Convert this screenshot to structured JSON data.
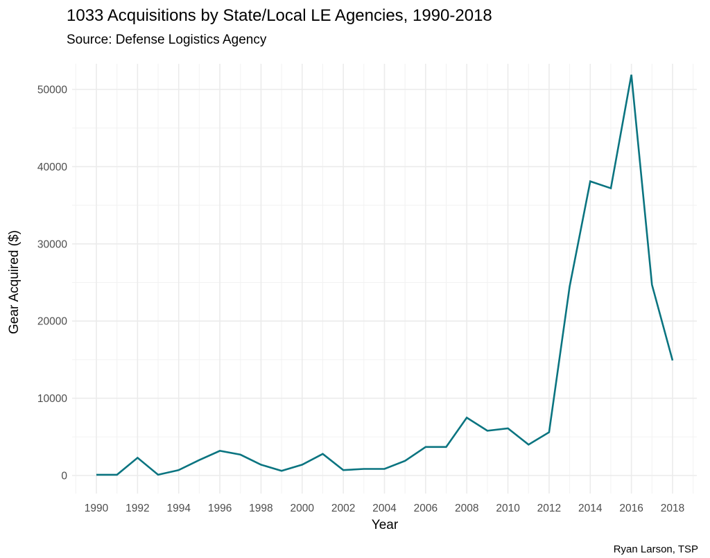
{
  "chart_data": {
    "type": "line",
    "title": "1033 Acquisitions by State/Local LE Agencies, 1990-2018",
    "subtitle": "Source: Defense Logistics Agency",
    "xlabel": "Year",
    "ylabel": "Gear Acquired ($)",
    "caption": "Ryan Larson, TSP",
    "xlim": [
      1989,
      2019
    ],
    "ylim": [
      -1500,
      54500
    ],
    "x_ticks": [
      1990,
      1992,
      1994,
      1996,
      1998,
      2000,
      2002,
      2004,
      2006,
      2008,
      2010,
      2012,
      2014,
      2016,
      2018
    ],
    "x_tick_labels": [
      "1990",
      "1992",
      "1994",
      "1996",
      "1998",
      "2000",
      "2002",
      "2004",
      "2006",
      "2008",
      "2010",
      "2012",
      "2014",
      "2016",
      "2018"
    ],
    "y_ticks": [
      0,
      10000,
      20000,
      30000,
      40000,
      50000
    ],
    "y_tick_labels": [
      "0",
      "10000",
      "20000",
      "30000",
      "40000",
      "50000"
    ],
    "grid": true,
    "legend": "none",
    "series": [
      {
        "name": "Gear Acquired",
        "color": "#0a7480",
        "x": [
          1990,
          1991,
          1992,
          1993,
          1994,
          1995,
          1996,
          1997,
          1998,
          1999,
          2000,
          2001,
          2002,
          2003,
          2004,
          2005,
          2006,
          2007,
          2008,
          2009,
          2010,
          2011,
          2012,
          2013,
          2014,
          2015,
          2016,
          2017,
          2018
        ],
        "values": [
          100,
          100,
          2300,
          100,
          700,
          2000,
          3200,
          2700,
          1400,
          600,
          1400,
          2800,
          700,
          850,
          850,
          1900,
          3700,
          3700,
          7500,
          5800,
          6100,
          4000,
          5600,
          24500,
          38100,
          37200,
          51900,
          24700,
          14900
        ]
      }
    ]
  }
}
